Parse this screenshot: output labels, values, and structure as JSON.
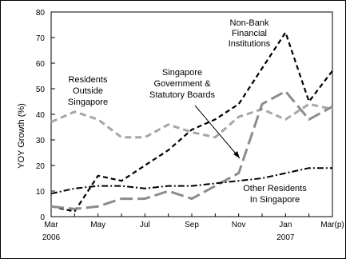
{
  "chart_data": {
    "type": "line",
    "ylabel": "YOY Growth (%)",
    "ylim": [
      0,
      80
    ],
    "yticks": [
      0,
      10,
      20,
      30,
      40,
      50,
      60,
      70,
      80
    ],
    "x_tick_labels": [
      {
        "x": 0,
        "month": "Mar",
        "year": "2006"
      },
      {
        "x": 2,
        "month": "May",
        "year": ""
      },
      {
        "x": 4,
        "month": "Jul",
        "year": ""
      },
      {
        "x": 6,
        "month": "Sep",
        "year": ""
      },
      {
        "x": 8,
        "month": "Nov",
        "year": ""
      },
      {
        "x": 10,
        "month": "Jan",
        "year": "2007"
      },
      {
        "x": 12,
        "month": "Mar(p)",
        "year": ""
      }
    ],
    "x": [
      0,
      1,
      2,
      3,
      4,
      5,
      6,
      7,
      8,
      9,
      10,
      11,
      12
    ],
    "series": [
      {
        "name": "Non-Bank Financial Institutions",
        "color": "#000000",
        "style": "dash",
        "values": [
          4,
          2,
          16,
          14,
          20,
          26,
          34,
          38,
          44,
          58,
          72,
          45,
          57
        ]
      },
      {
        "name": "Residents Outside Singapore",
        "color": "#a6a6a6",
        "style": "short-dash",
        "values": [
          37,
          41,
          38,
          31,
          31,
          36,
          33,
          31,
          39,
          42,
          38,
          44,
          42
        ]
      },
      {
        "name": "Singapore Government & Statutory Boards",
        "color": "#8c8c8c",
        "style": "long-dash",
        "values": [
          4,
          3,
          4,
          7,
          7,
          10,
          7,
          12,
          17,
          44,
          49,
          38,
          43
        ]
      },
      {
        "name": "Other Residents In Singapore",
        "color": "#000000",
        "style": "dash-dot",
        "values": [
          9,
          11,
          12,
          12,
          11,
          12,
          12,
          13,
          14,
          15,
          17,
          19,
          19
        ]
      }
    ],
    "annotations": [
      {
        "lines": [
          "Non-Bank",
          "Financial",
          "Institutions"
        ]
      },
      {
        "lines": [
          "Residents",
          "Outside",
          "Singapore"
        ]
      },
      {
        "lines": [
          "Singapore",
          "Government &",
          "Statutory Boards"
        ]
      },
      {
        "lines": [
          "Other Residents",
          "In Singapore"
        ]
      }
    ],
    "grid": false
  }
}
